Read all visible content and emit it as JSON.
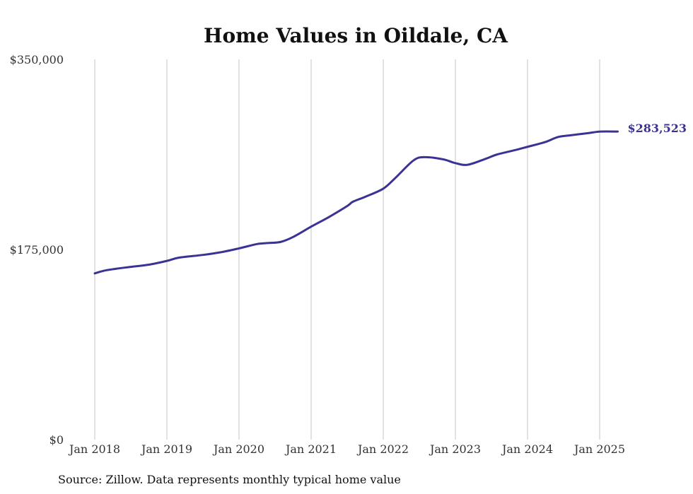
{
  "chart_data": {
    "type": "line",
    "title": "Home Values in Oildale, CA",
    "source": "Source: Zillow. Data represents monthly typical home value",
    "series_color": "#3b3394",
    "grid_color": "#c4c4c4",
    "y_ticks": [
      {
        "value": 0,
        "label": "$0"
      },
      {
        "value": 175000,
        "label": "$175,000"
      },
      {
        "value": 350000,
        "label": "$350,000"
      }
    ],
    "ylim": [
      0,
      350000
    ],
    "x_ticks": [
      {
        "value": 2018.0,
        "label": "Jan 2018"
      },
      {
        "value": 2019.0,
        "label": "Jan 2019"
      },
      {
        "value": 2020.0,
        "label": "Jan 2020"
      },
      {
        "value": 2021.0,
        "label": "Jan 2021"
      },
      {
        "value": 2022.0,
        "label": "Jan 2022"
      },
      {
        "value": 2023.0,
        "label": "Jan 2023"
      },
      {
        "value": 2024.0,
        "label": "Jan 2024"
      },
      {
        "value": 2025.0,
        "label": "Jan 2025"
      }
    ],
    "xlim": [
      2018.0,
      2025.25
    ],
    "grid": "vertical",
    "end_label": "$283,523",
    "series": [
      {
        "points": [
          [
            2018.0,
            153000
          ],
          [
            2018.17,
            156000
          ],
          [
            2018.5,
            159000
          ],
          [
            2018.75,
            161000
          ],
          [
            2019.0,
            164500
          ],
          [
            2019.17,
            167500
          ],
          [
            2019.5,
            170000
          ],
          [
            2019.75,
            172500
          ],
          [
            2020.0,
            176000
          ],
          [
            2020.25,
            180000
          ],
          [
            2020.42,
            181000
          ],
          [
            2020.58,
            182000
          ],
          [
            2020.75,
            186500
          ],
          [
            2021.0,
            196000
          ],
          [
            2021.25,
            205000
          ],
          [
            2021.5,
            215000
          ],
          [
            2021.58,
            219000
          ],
          [
            2021.75,
            223500
          ],
          [
            2022.0,
            231000
          ],
          [
            2022.17,
            241000
          ],
          [
            2022.42,
            257000
          ],
          [
            2022.58,
            260000
          ],
          [
            2022.83,
            258000
          ],
          [
            2023.0,
            254500
          ],
          [
            2023.17,
            253000
          ],
          [
            2023.42,
            258500
          ],
          [
            2023.58,
            262500
          ],
          [
            2023.83,
            266500
          ],
          [
            2024.0,
            269500
          ],
          [
            2024.25,
            274000
          ],
          [
            2024.42,
            278500
          ],
          [
            2024.58,
            280000
          ],
          [
            2024.83,
            282000
          ],
          [
            2025.0,
            283500
          ],
          [
            2025.25,
            283523
          ]
        ]
      }
    ]
  }
}
